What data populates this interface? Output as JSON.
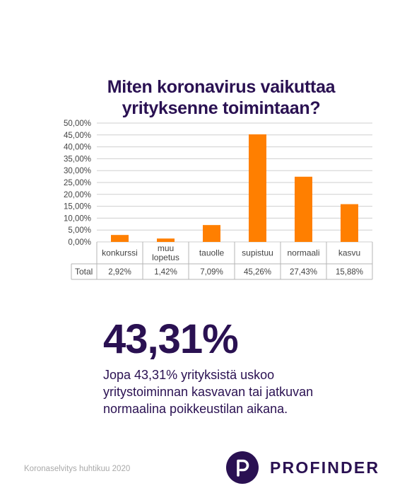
{
  "chart_data": {
    "type": "bar",
    "title": "Miten koronavirus vaikuttaa yrityksenne toimintaan?",
    "title_lines": [
      "Miten koronavirus vaikuttaa",
      "yrityksenne toimintaan?"
    ],
    "categories": [
      [
        "konkurssi"
      ],
      [
        "muu",
        "lopetus"
      ],
      [
        "tauolle"
      ],
      [
        "supistuu"
      ],
      [
        "normaali"
      ],
      [
        "kasvu"
      ]
    ],
    "series": [
      {
        "name": "Total",
        "values": [
          2.92,
          1.42,
          7.09,
          45.26,
          27.43,
          15.88
        ],
        "labels": [
          "2,92%",
          "1,42%",
          "7,09%",
          "45,26%",
          "27,43%",
          "15,88%"
        ]
      }
    ],
    "yticks": [
      "0,00%",
      "5,00%",
      "10,00%",
      "15,00%",
      "20,00%",
      "25,00%",
      "30,00%",
      "35,00%",
      "40,00%",
      "45,00%",
      "50,00%"
    ],
    "ylim": [
      0,
      50
    ],
    "grid": true,
    "data_table": true,
    "colors": {
      "bar": "#ff7f00",
      "grid": "#cfcfcf",
      "axis_text": "#444444"
    }
  },
  "highlight": {
    "value": "43,31%",
    "text": "Jopa 43,31% yrityksistä uskoo yritystoiminnan kasvavan tai jatkuvan normaalina poikkeustilan aikana."
  },
  "footer": {
    "note": "Koronaselvitys huhtikuu 2020",
    "brand": "PROFINDER",
    "brand_logo_icon": "profinder-p-logo-icon"
  },
  "colors": {
    "primary": "#2a1152",
    "accent": "#ff7f00"
  }
}
